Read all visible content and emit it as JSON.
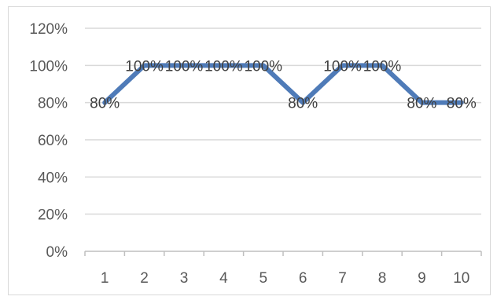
{
  "chart_data": {
    "type": "line",
    "categories": [
      "1",
      "2",
      "3",
      "4",
      "5",
      "6",
      "7",
      "8",
      "9",
      "10"
    ],
    "series": [
      {
        "values": [
          80,
          100,
          100,
          100,
          100,
          80,
          100,
          100,
          80,
          80
        ],
        "data_labels": [
          "80%",
          "100%",
          "100%",
          "100%",
          "100%",
          "80%",
          "100%",
          "100%",
          "80%",
          "80%"
        ]
      }
    ],
    "y_ticks": [
      "0%",
      "20%",
      "40%",
      "60%",
      "80%",
      "100%",
      "120%"
    ],
    "ylim": [
      0,
      120
    ],
    "grid": true,
    "legend": "none",
    "colors": {
      "line": "#4f7bb8",
      "grid": "#d9d9d9",
      "axis": "#bfbfbf",
      "frame": "#d9d9d9"
    }
  }
}
